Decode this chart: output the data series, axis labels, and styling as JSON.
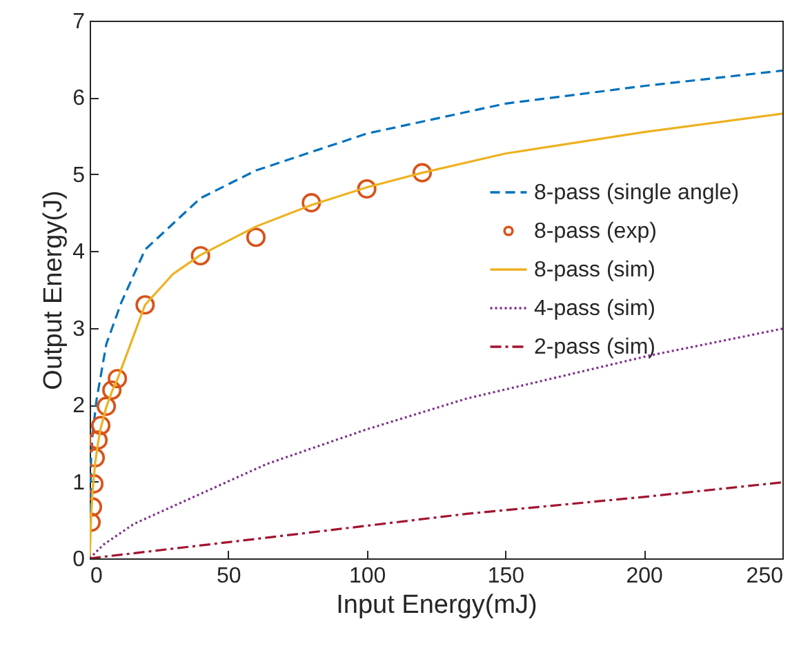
{
  "chart_data": {
    "type": "line",
    "xlabel": "Input Energy(mJ)",
    "ylabel": "Output Energy(J)",
    "xlim": [
      0,
      250
    ],
    "ylim": [
      0,
      7
    ],
    "xticks": [
      0,
      50,
      100,
      150,
      200,
      250
    ],
    "yticks": [
      0,
      1,
      2,
      3,
      4,
      5,
      6,
      7
    ],
    "grid": false,
    "legend": "right",
    "series": [
      {
        "name": "8-pass (single angle)",
        "color": "#0072bd",
        "line_style": "dashed",
        "marker": "none",
        "x": [
          0,
          0.5,
          1,
          2.5,
          6,
          11.4,
          20,
          40,
          60,
          100,
          150,
          200,
          250
        ],
        "values": [
          0,
          1.3,
          1.6,
          2.07,
          2.79,
          3.33,
          4.02,
          4.69,
          5.05,
          5.53,
          5.92,
          6.15,
          6.35
        ]
      },
      {
        "name": "8-pass (exp)",
        "type": "scatter",
        "color": "#d95319",
        "marker": "circle",
        "x": [
          0.5,
          1,
          1.5,
          2,
          3,
          4,
          6,
          8,
          10,
          20,
          40,
          60,
          80,
          100,
          120
        ],
        "values": [
          0.47,
          0.67,
          0.97,
          1.31,
          1.54,
          1.73,
          1.98,
          2.19,
          2.34,
          3.3,
          3.94,
          4.18,
          4.63,
          4.81,
          5.02
        ]
      },
      {
        "name": "8-pass (sim)",
        "color": "#edb120",
        "line_style": "solid",
        "marker": "none",
        "x": [
          0,
          0.5,
          1,
          2,
          3,
          4,
          6,
          8,
          10,
          20,
          30,
          40,
          60,
          80,
          100,
          120,
          150,
          200,
          250
        ],
        "values": [
          0,
          0.55,
          0.85,
          1.25,
          1.5,
          1.7,
          1.97,
          2.17,
          2.33,
          3.3,
          3.7,
          3.95,
          4.32,
          4.6,
          4.83,
          5.02,
          5.27,
          5.55,
          5.79
        ]
      },
      {
        "name": "4-pass (sim)",
        "color": "#7e2f8e",
        "line_style": "dotted",
        "marker": "none",
        "x": [
          0,
          5,
          16,
          64,
          100,
          136,
          202,
          250
        ],
        "values": [
          0,
          0.18,
          0.45,
          1.23,
          1.68,
          2.08,
          2.64,
          2.99
        ]
      },
      {
        "name": "2-pass (sim)",
        "color": "#a2142f",
        "line_style": "dashdot",
        "marker": "none",
        "x": [
          0,
          64,
          136,
          200,
          250
        ],
        "values": [
          0,
          0.27,
          0.58,
          0.8,
          0.99
        ]
      }
    ]
  }
}
